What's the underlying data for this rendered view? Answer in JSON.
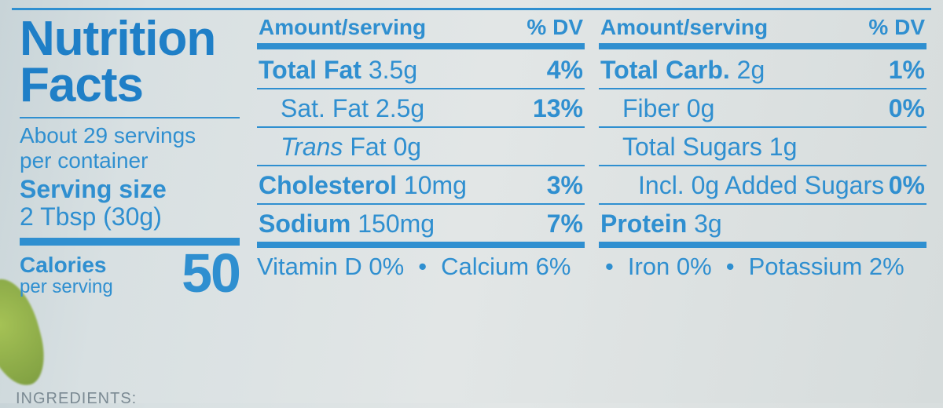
{
  "title1": "Nutrition",
  "title2": "Facts",
  "servings_line1": "About 29 servings",
  "servings_line2": "per container",
  "serving_size_label": "Serving size",
  "serving_size_value": "2 Tbsp (30g)",
  "calories_label": "Calories",
  "per_serving": "per serving",
  "calories_value": "50",
  "hdr_amount": "Amount/serving",
  "hdr_dv": "% DV",
  "col1": {
    "r1": {
      "bold": "Total Fat",
      "val": " 3.5g",
      "dv": "4%"
    },
    "r2": {
      "label": "Sat. Fat 2.5g",
      "dv": "13%"
    },
    "r3": {
      "italic": "Trans",
      "rest": " Fat 0g",
      "dv": ""
    },
    "r4": {
      "bold": "Cholesterol",
      "val": " 10mg",
      "dv": "3%"
    },
    "r5": {
      "bold": "Sodium",
      "val": " 150mg",
      "dv": "7%"
    }
  },
  "col2": {
    "r1": {
      "bold": "Total Carb.",
      "val": " 2g",
      "dv": "1%"
    },
    "r2": {
      "label": "Fiber 0g",
      "dv": "0%"
    },
    "r3": {
      "label": "Total Sugars 1g",
      "dv": ""
    },
    "r4": {
      "label": "Incl. 0g Added Sugars",
      "dv": "0%"
    },
    "r5": {
      "bold": "Protein",
      "val": " 3g",
      "dv": ""
    }
  },
  "vitamins": {
    "vd": "Vitamin D  0%",
    "ca": "Calcium  6%",
    "fe": "Iron  0%",
    "k": "Potassium  2%"
  },
  "ingredients_label": "INGREDIENTS:",
  "colors": {
    "ink": "#2f8fd0"
  }
}
